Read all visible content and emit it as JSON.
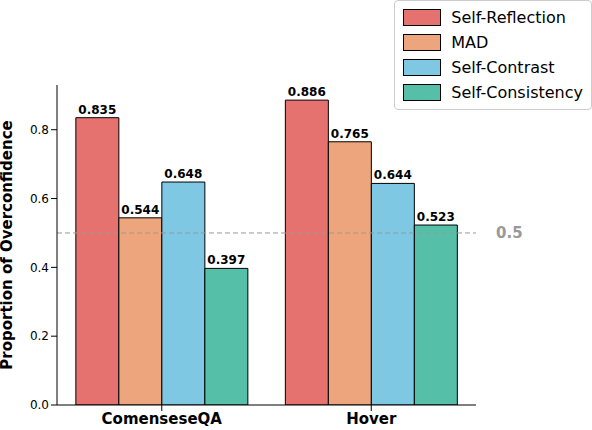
{
  "chart_data": {
    "type": "bar",
    "y_label": "Proportion of Overconfidence",
    "categories": [
      "ComenseseQA",
      "Hover"
    ],
    "series": [
      {
        "name": "Self-Reflection",
        "color": "#e5726f",
        "values": [
          0.835,
          0.886
        ]
      },
      {
        "name": "MAD",
        "color": "#eda57d",
        "values": [
          0.544,
          0.765
        ]
      },
      {
        "name": "Self-Contrast",
        "color": "#7ec8e3",
        "values": [
          0.648,
          0.644
        ]
      },
      {
        "name": "Self-Consistency",
        "color": "#55bfa7",
        "values": [
          0.397,
          0.523
        ]
      }
    ],
    "ylim": [
      0,
      0.93
    ],
    "yticks": [
      {
        "value": 0,
        "label": "0.0"
      },
      0.2,
      0.4,
      0.6,
      0.8
    ],
    "hlines": [
      0.5
    ],
    "data_labels": true,
    "legend": "upper right",
    "grid": false
  }
}
